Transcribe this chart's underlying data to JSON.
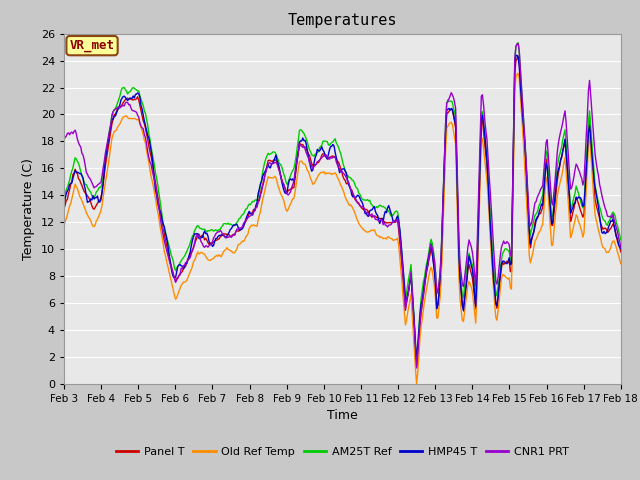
{
  "title": "Temperatures",
  "xlabel": "Time",
  "ylabel": "Temperature (C)",
  "ylim": [
    0,
    26
  ],
  "yticks": [
    0,
    2,
    4,
    6,
    8,
    10,
    12,
    14,
    16,
    18,
    20,
    22,
    24,
    26
  ],
  "xtick_labels": [
    "Feb 3",
    "Feb 4",
    "Feb 5",
    "Feb 6",
    "Feb 7",
    "Feb 8",
    "Feb 9",
    "Feb 10",
    "Feb 11",
    "Feb 12",
    "Feb 13",
    "Feb 14",
    "Feb 15",
    "Feb 16",
    "Feb 17",
    "Feb 18"
  ],
  "annotation_text": "VR_met",
  "annotation_color": "#8B0000",
  "annotation_bg": "#FFFF99",
  "annotation_border": "#8B4513",
  "series_colors": [
    "#CC0000",
    "#FF8C00",
    "#00CC00",
    "#0000CC",
    "#9900CC"
  ],
  "series_names": [
    "Panel T",
    "Old Ref Temp",
    "AM25T Ref",
    "HMP45 T",
    "CNR1 PRT"
  ],
  "fig_bg_color": "#C8C8C8",
  "plot_bg_color": "#E8E8E8",
  "grid_color": "#FFFFFF",
  "line_width": 1.0,
  "n_points": 500,
  "figsize": [
    6.4,
    4.8
  ],
  "dpi": 100
}
